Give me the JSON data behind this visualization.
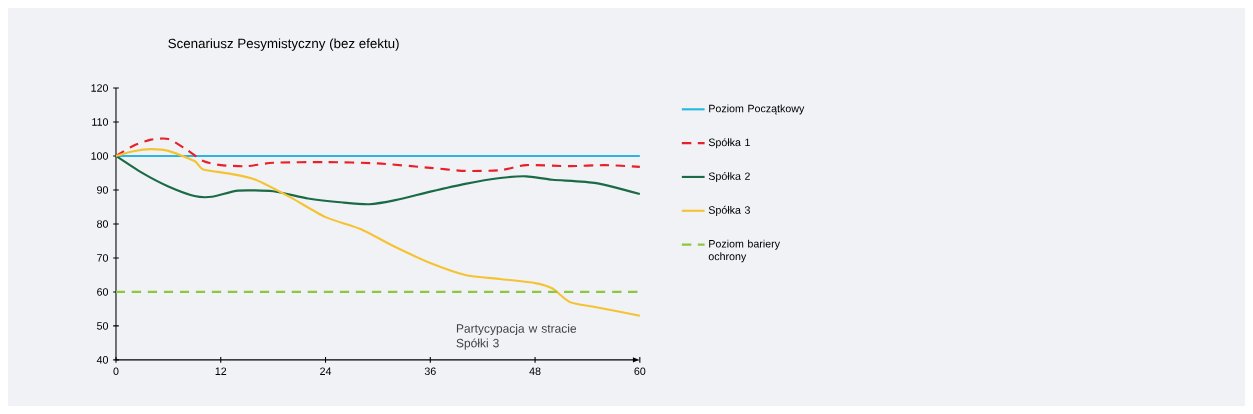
{
  "chart_data": {
    "type": "line",
    "title": "Scenariusz Pesymistyczny (bez efektu)",
    "xlim": [
      0,
      60
    ],
    "xticks": [
      0,
      12,
      24,
      36,
      48,
      60
    ],
    "ylim": [
      40,
      120
    ],
    "yticks": [
      40,
      50,
      60,
      70,
      80,
      90,
      100,
      110,
      120
    ],
    "grid": false,
    "legend": "right",
    "series": [
      {
        "name": "Poziom Początkowy",
        "color": "#29b6e0",
        "line_style": "solid",
        "x": [
          0,
          60
        ],
        "values": [
          100,
          100
        ]
      },
      {
        "name": "Spółka 1",
        "color": "#e8202a",
        "line_style": "dashed",
        "x": [
          0,
          2,
          4,
          6,
          8,
          10,
          12,
          15,
          18,
          24,
          30,
          36,
          40,
          44,
          47,
          52,
          56,
          60
        ],
        "values": [
          100,
          103,
          104.8,
          105,
          102,
          98.5,
          97.3,
          97,
          98,
          98.2,
          97.8,
          96.5,
          95.6,
          95.8,
          97.3,
          97,
          97.3,
          96.8
        ]
      },
      {
        "name": "Spółka 2",
        "color": "#1a6b45",
        "line_style": "solid",
        "x": [
          0,
          3,
          6,
          9,
          11,
          14,
          18,
          22,
          26,
          29,
          32,
          36,
          40,
          44,
          47,
          50,
          55,
          60
        ],
        "values": [
          100,
          95,
          91,
          88.2,
          88,
          89.8,
          89.6,
          87.5,
          86.3,
          85.8,
          87,
          89.5,
          91.8,
          93.5,
          94,
          93,
          92,
          88.8
        ]
      },
      {
        "name": "Spółka 3",
        "color": "#f5c332",
        "line_style": "solid",
        "x": [
          0,
          2,
          4,
          6,
          9,
          10,
          13,
          16,
          20,
          24,
          28,
          32,
          36,
          40,
          44,
          48,
          50,
          52,
          55,
          60
        ],
        "values": [
          100,
          101.4,
          102,
          101.5,
          98.5,
          96,
          94.8,
          93,
          87.8,
          82,
          78.5,
          73.2,
          68.5,
          65,
          63.8,
          62.6,
          61,
          57,
          55.5,
          53
        ]
      },
      {
        "name": "Poziom bariery ochrony",
        "color": "#8dc63f",
        "line_style": "dashed",
        "x": [
          0,
          60
        ],
        "values": [
          60,
          60
        ]
      }
    ],
    "annotations": [
      "Partycypacja w stracie Spółki 3"
    ]
  }
}
